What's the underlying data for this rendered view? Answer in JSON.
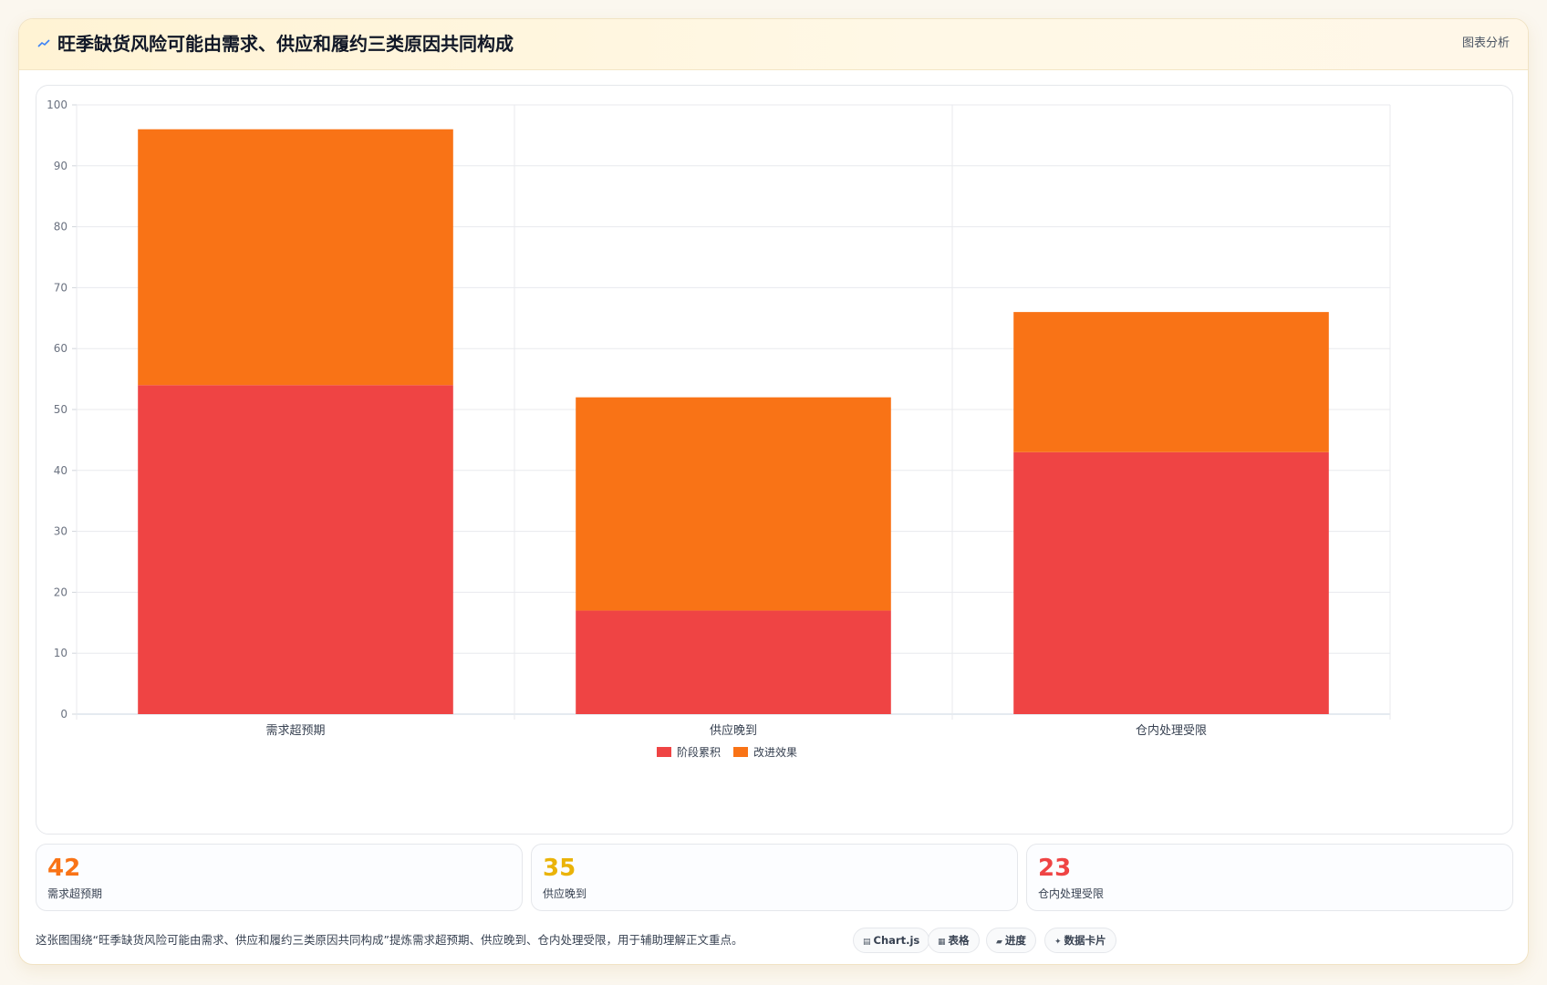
{
  "header": {
    "title": "旺季缺货风险可能由需求、供应和履约三类原因共同构成",
    "link_label": "图表分析",
    "icon": "line-chart-icon"
  },
  "chart_data": {
    "type": "bar",
    "stacked": true,
    "categories": [
      "需求超预期",
      "供应晚到",
      "仓内处理受限"
    ],
    "series": [
      {
        "name": "阶段累积",
        "color": "#ef4444",
        "values": [
          54,
          17,
          43
        ]
      },
      {
        "name": "改进效果",
        "color": "#f97316",
        "values": [
          42,
          35,
          23
        ]
      }
    ],
    "ylim": [
      0,
      100
    ],
    "yticks": [
      0,
      10,
      20,
      30,
      40,
      50,
      60,
      70,
      80,
      90,
      100
    ],
    "grid": true,
    "legend_position": "bottom",
    "title": "",
    "xlabel": "",
    "ylabel": ""
  },
  "stats": [
    {
      "value": "42",
      "label": "需求超预期",
      "color": "#f97316"
    },
    {
      "value": "35",
      "label": "供应晚到",
      "color": "#eab308"
    },
    {
      "value": "23",
      "label": "仓内处理受限",
      "color": "#ef4444"
    }
  ],
  "caption": "这张图围绕“旺季缺货风险可能由需求、供应和履约三类原因共同构成”提炼需求超预期、供应晚到、仓内处理受限，用于辅助理解正文重点。",
  "tags": [
    {
      "icon": "chart-icon",
      "glyph": "▤",
      "label": "Chart.js"
    },
    {
      "icon": "table-icon",
      "glyph": "▦",
      "label": "表格"
    },
    {
      "icon": "progress-icon",
      "glyph": "▰",
      "label": "进度"
    },
    {
      "icon": "sparkle-icon",
      "glyph": "✦",
      "label": "数据卡片"
    }
  ]
}
